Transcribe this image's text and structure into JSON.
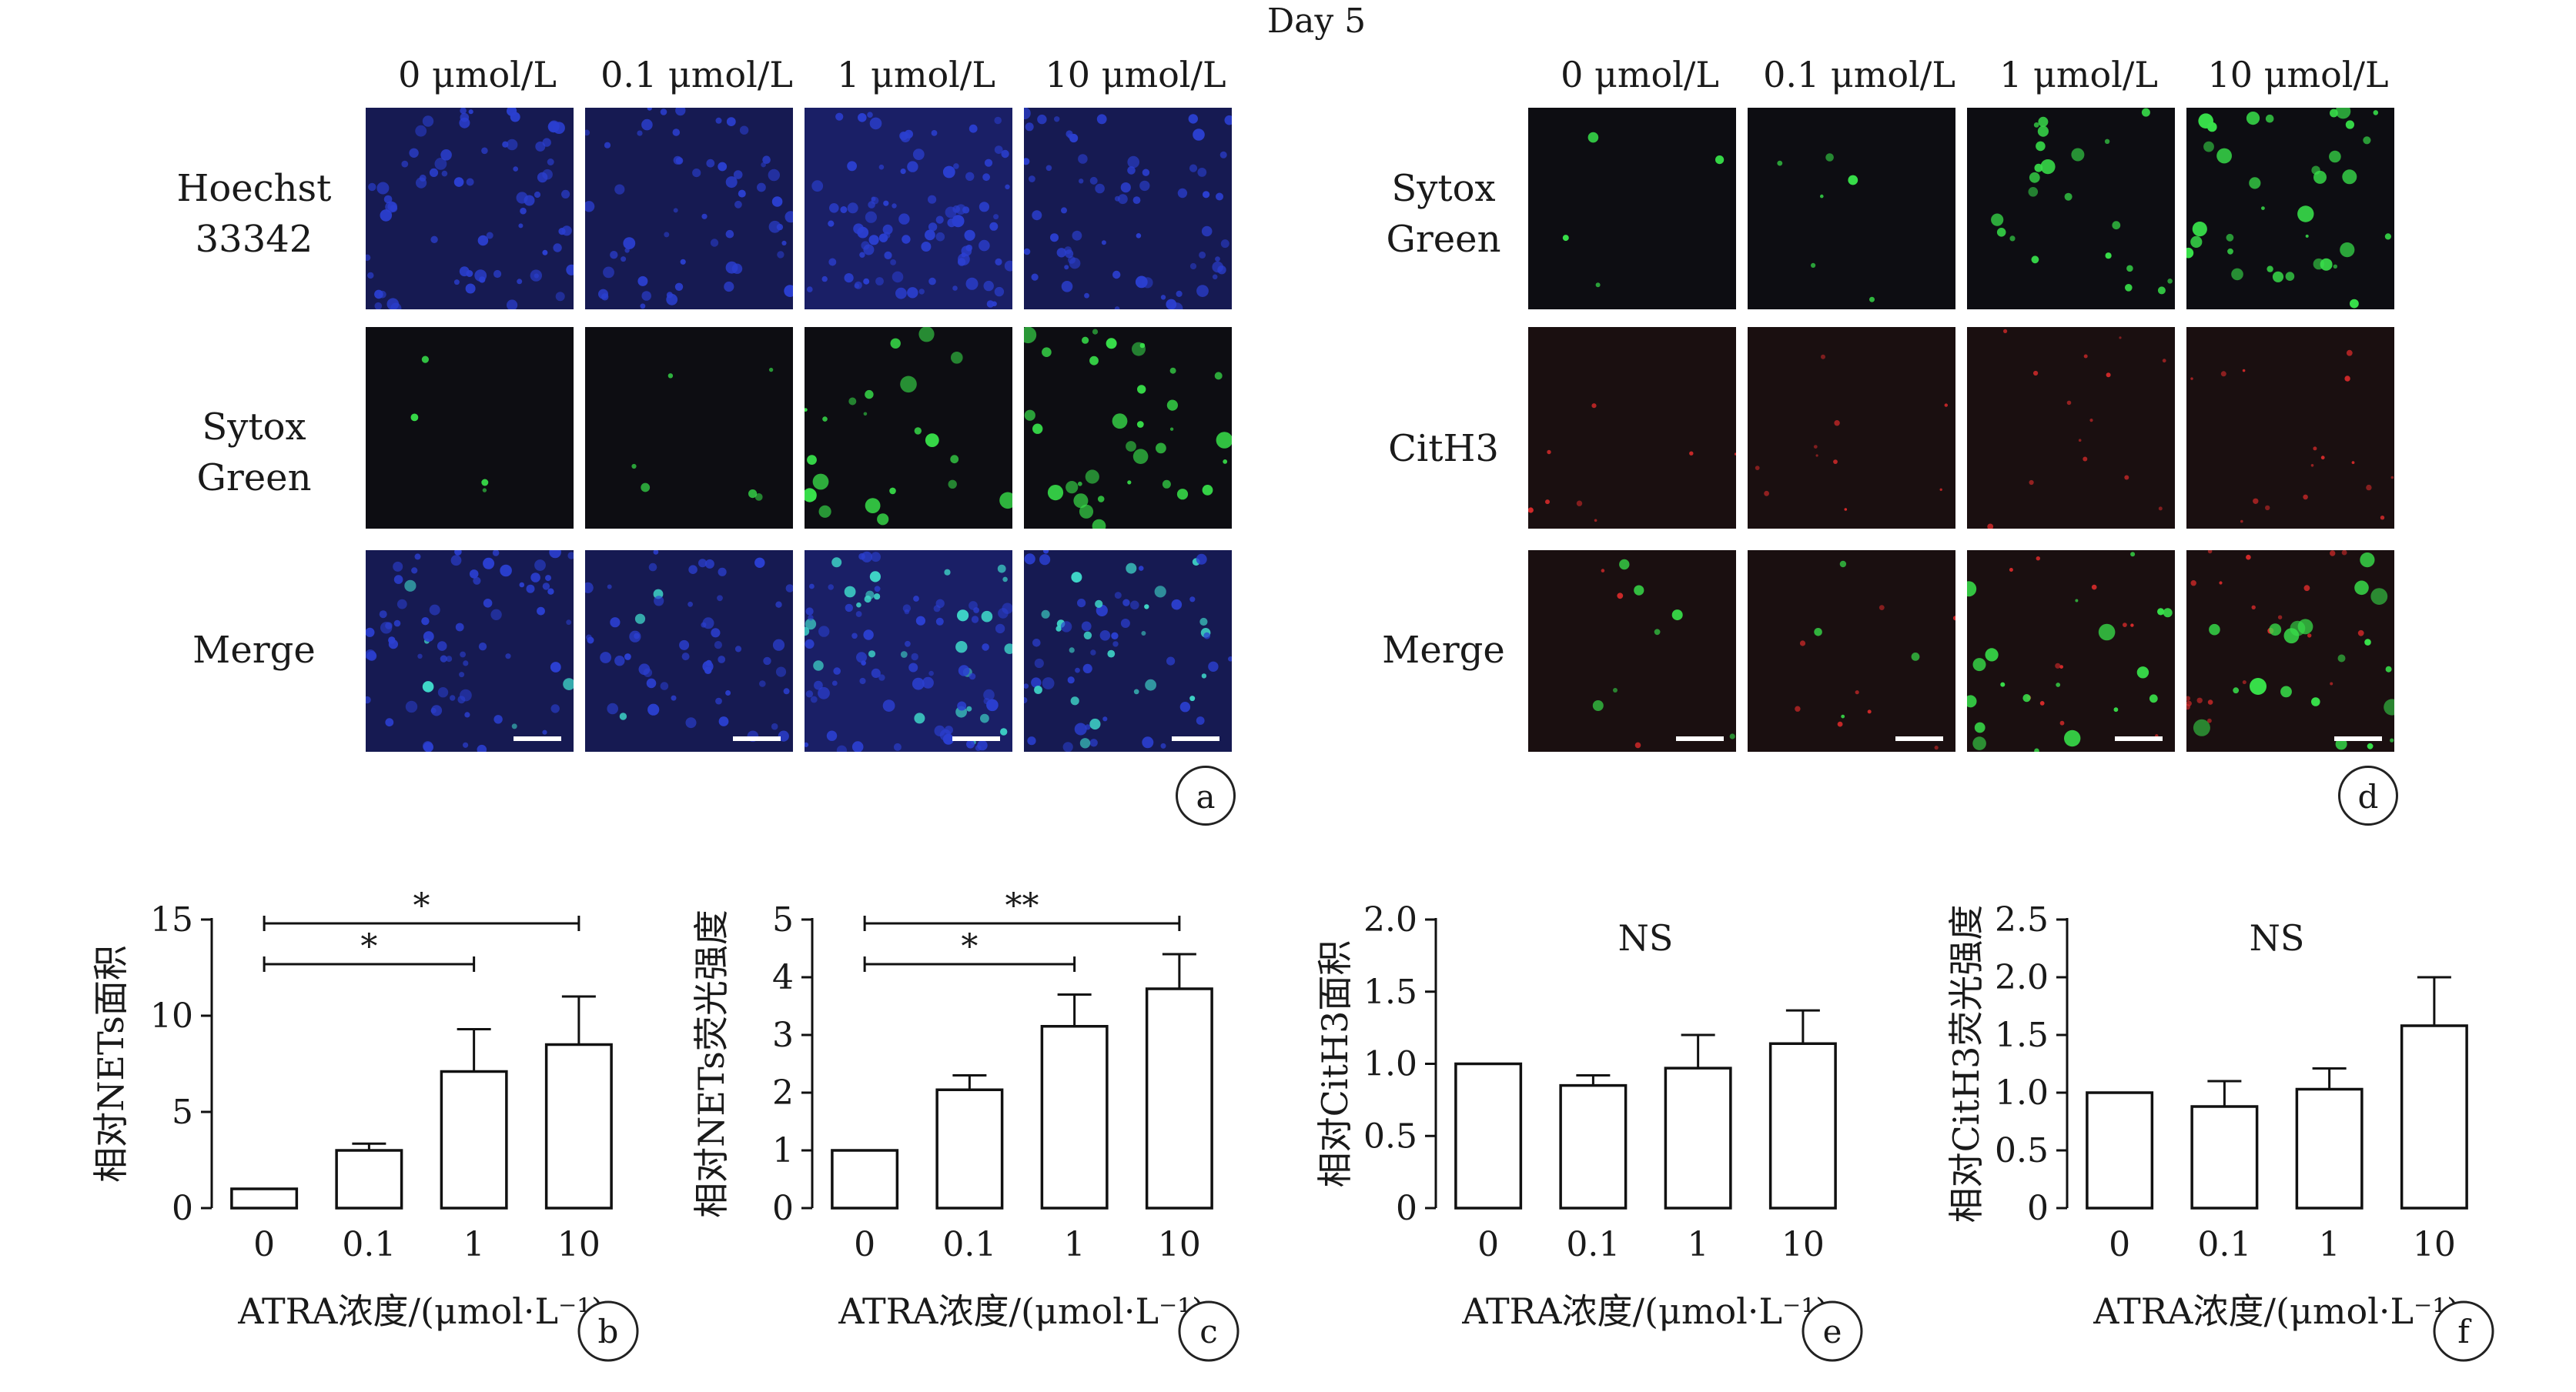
{
  "figure_title": "Day 5",
  "concentration_columns": [
    "0 μmol/L",
    "0.1 μmol/L",
    "1 μmol/L",
    "10 μmol/L"
  ],
  "panel_a": {
    "letter": "a",
    "row_labels": [
      "Hoechst\n33342",
      "Sytox\nGreen",
      "Merge"
    ],
    "channels": [
      "blue",
      "green",
      "merge-blue-green"
    ]
  },
  "panel_d": {
    "letter": "d",
    "row_labels": [
      "Sytox\nGreen",
      "CitH3",
      "Merge"
    ],
    "channels": [
      "green",
      "red",
      "merge-red-green"
    ]
  },
  "colors": {
    "bar_fill": "#ffffff",
    "bar_stroke": "#111111",
    "image_blue": "#2b3fd0",
    "image_green": "#38e04a",
    "image_red": "#d42a2a"
  },
  "chart_data": [
    {
      "letter": "b",
      "type": "bar",
      "categories": [
        "0",
        "0.1",
        "1",
        "10"
      ],
      "values": [
        1,
        3,
        7.1,
        8.5
      ],
      "errors": [
        0,
        0.35,
        2.2,
        2.5
      ],
      "ylabel": "相对NETs面积",
      "xlabel": "ATRA浓度/(μmol·L⁻¹)",
      "yticks": [
        "0",
        "5",
        "10",
        "15"
      ],
      "ylim": [
        0,
        15
      ],
      "significance": [
        {
          "from": 0,
          "to": 2,
          "label": "*"
        },
        {
          "from": 0,
          "to": 3,
          "label": "*"
        }
      ],
      "annotation": ""
    },
    {
      "letter": "c",
      "type": "bar",
      "categories": [
        "0",
        "0.1",
        "1",
        "10"
      ],
      "values": [
        1,
        2.05,
        3.15,
        3.8
      ],
      "errors": [
        0,
        0.25,
        0.55,
        0.6
      ],
      "ylabel": "相对NETs荧光强度",
      "xlabel": "ATRA浓度/(μmol·L⁻¹)",
      "yticks": [
        "0",
        "1",
        "2",
        "3",
        "4",
        "5"
      ],
      "ylim": [
        0,
        5
      ],
      "significance": [
        {
          "from": 0,
          "to": 2,
          "label": "*"
        },
        {
          "from": 0,
          "to": 3,
          "label": "**"
        }
      ],
      "annotation": ""
    },
    {
      "letter": "e",
      "type": "bar",
      "categories": [
        "0",
        "0.1",
        "1",
        "10"
      ],
      "values": [
        1,
        0.85,
        0.97,
        1.14
      ],
      "errors": [
        0,
        0.07,
        0.23,
        0.23
      ],
      "ylabel": "相对CitH3面积",
      "xlabel": "ATRA浓度/(μmol·L⁻¹)",
      "yticks": [
        "0",
        "0.5",
        "1.0",
        "1.5",
        "2.0"
      ],
      "ylim": [
        0,
        2
      ],
      "significance": [],
      "annotation": "NS"
    },
    {
      "letter": "f",
      "type": "bar",
      "categories": [
        "0",
        "0.1",
        "1",
        "10"
      ],
      "values": [
        1,
        0.88,
        1.03,
        1.58
      ],
      "errors": [
        0,
        0.22,
        0.18,
        0.42
      ],
      "ylabel": "相对CitH3荧光强度",
      "xlabel": "ATRA浓度/(μmol·L⁻¹)",
      "yticks": [
        "0",
        "0.5",
        "1.0",
        "1.5",
        "2.0",
        "2.5"
      ],
      "ylim": [
        0,
        2.5
      ],
      "significance": [],
      "annotation": "NS"
    }
  ]
}
